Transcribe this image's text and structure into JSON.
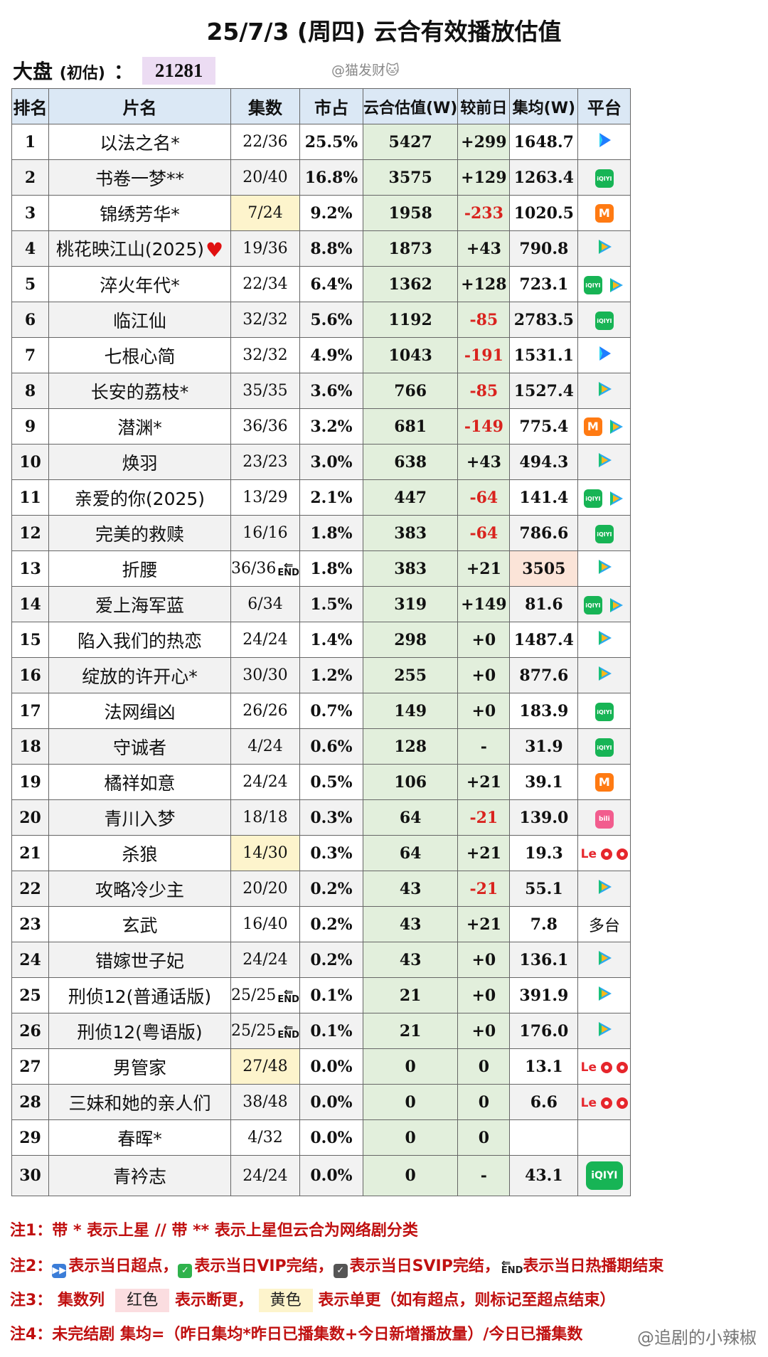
{
  "title": "25/7/3 (周四) 云合有效播放估值",
  "total": {
    "label": "大盘",
    "sublabel": "(初估)",
    "colon": "：",
    "value": "21281"
  },
  "watermark": "@猫发财🐱",
  "headers": [
    "排名",
    "片名",
    "集数",
    "市占",
    "云合估值(W)",
    "较前日",
    "集均(W)",
    "平台"
  ],
  "rows": [
    {
      "rank": "1",
      "name": "以法之名*",
      "episodes": "22/36",
      "share": "25.5%",
      "estimate": "5427",
      "change": "+299",
      "avg": "1648.7",
      "platforms": [
        "youku"
      ]
    },
    {
      "rank": "2",
      "name": "书卷一梦**",
      "episodes": "20/40",
      "share": "16.8%",
      "estimate": "3575",
      "change": "+129",
      "avg": "1263.4",
      "platforms": [
        "iqiyi"
      ]
    },
    {
      "rank": "3",
      "name": "锦绣芳华*",
      "episodes": "7/24",
      "ep_highlight": "yellow",
      "share": "9.2%",
      "estimate": "1958",
      "change": "-233",
      "avg": "1020.5",
      "platforms": [
        "mango"
      ]
    },
    {
      "rank": "4",
      "name": "桃花映江山(2025)",
      "heart": true,
      "episodes": "19/36",
      "share": "8.8%",
      "estimate": "1873",
      "change": "+43",
      "avg": "790.8",
      "platforms": [
        "tencent"
      ]
    },
    {
      "rank": "5",
      "name": "淬火年代*",
      "episodes": "22/34",
      "share": "6.4%",
      "estimate": "1362",
      "change": "+128",
      "avg": "723.1",
      "platforms": [
        "iqiyi",
        "tencent"
      ]
    },
    {
      "rank": "6",
      "name": "临江仙",
      "episodes": "32/32",
      "share": "5.6%",
      "estimate": "1192",
      "change": "-85",
      "avg": "2783.5",
      "platforms": [
        "iqiyi"
      ]
    },
    {
      "rank": "7",
      "name": "七根心简",
      "episodes": "32/32",
      "share": "4.9%",
      "estimate": "1043",
      "change": "-191",
      "avg": "1531.1",
      "platforms": [
        "youku"
      ]
    },
    {
      "rank": "8",
      "name": "长安的荔枝*",
      "episodes": "35/35",
      "share": "3.6%",
      "estimate": "766",
      "change": "-85",
      "avg": "1527.4",
      "platforms": [
        "tencent"
      ]
    },
    {
      "rank": "9",
      "name": "潜渊*",
      "episodes": "36/36",
      "share": "3.2%",
      "estimate": "681",
      "change": "-149",
      "avg": "775.4",
      "platforms": [
        "mango",
        "tencent"
      ]
    },
    {
      "rank": "10",
      "name": "焕羽",
      "episodes": "23/23",
      "share": "3.0%",
      "estimate": "638",
      "change": "+43",
      "avg": "494.3",
      "platforms": [
        "tencent"
      ]
    },
    {
      "rank": "11",
      "name": "亲爱的你(2025)",
      "episodes": "13/29",
      "share": "2.1%",
      "estimate": "447",
      "change": "-64",
      "avg": "141.4",
      "platforms": [
        "iqiyi",
        "tencent"
      ]
    },
    {
      "rank": "12",
      "name": "完美的救赎",
      "episodes": "16/16",
      "share": "1.8%",
      "estimate": "383",
      "change": "-64",
      "avg": "786.6",
      "platforms": [
        "iqiyi"
      ]
    },
    {
      "rank": "13",
      "name": "折腰",
      "episodes": "36/36",
      "end": true,
      "share": "1.8%",
      "estimate": "383",
      "change": "+21",
      "avg": "3505",
      "avg_highlight": true,
      "platforms": [
        "tencent"
      ]
    },
    {
      "rank": "14",
      "name": "爱上海军蓝",
      "episodes": "6/34",
      "share": "1.5%",
      "estimate": "319",
      "change": "+149",
      "avg": "81.6",
      "platforms": [
        "iqiyi",
        "tencent"
      ]
    },
    {
      "rank": "15",
      "name": "陷入我们的热恋",
      "episodes": "24/24",
      "share": "1.4%",
      "estimate": "298",
      "change": "+0",
      "avg": "1487.4",
      "platforms": [
        "tencent"
      ]
    },
    {
      "rank": "16",
      "name": "绽放的许开心*",
      "episodes": "30/30",
      "share": "1.2%",
      "estimate": "255",
      "change": "+0",
      "avg": "877.6",
      "platforms": [
        "tencent"
      ]
    },
    {
      "rank": "17",
      "name": "法网缉凶",
      "episodes": "26/26",
      "share": "0.7%",
      "estimate": "149",
      "change": "+0",
      "avg": "183.9",
      "platforms": [
        "iqiyi"
      ]
    },
    {
      "rank": "18",
      "name": "守诚者",
      "episodes": "4/24",
      "share": "0.6%",
      "estimate": "128",
      "change": "-",
      "avg": "31.9",
      "platforms": [
        "iqiyi"
      ]
    },
    {
      "rank": "19",
      "name": "橘祥如意",
      "episodes": "24/24",
      "share": "0.5%",
      "estimate": "106",
      "change": "+21",
      "avg": "39.1",
      "platforms": [
        "mango"
      ]
    },
    {
      "rank": "20",
      "name": "青川入梦",
      "episodes": "18/18",
      "share": "0.3%",
      "estimate": "64",
      "change": "-21",
      "avg": "139.0",
      "platforms": [
        "bili"
      ]
    },
    {
      "rank": "21",
      "name": "杀狼",
      "episodes": "14/30",
      "ep_highlight": "yellow",
      "share": "0.3%",
      "estimate": "64",
      "change": "+21",
      "avg": "19.3",
      "platforms": [
        "le"
      ]
    },
    {
      "rank": "22",
      "name": "攻略冷少主",
      "episodes": "20/20",
      "share": "0.2%",
      "estimate": "43",
      "change": "-21",
      "avg": "55.1",
      "platforms": [
        "tencent"
      ]
    },
    {
      "rank": "23",
      "name": "玄武",
      "episodes": "16/40",
      "share": "0.2%",
      "estimate": "43",
      "change": "+21",
      "avg": "7.8",
      "platforms": [
        "multi"
      ]
    },
    {
      "rank": "24",
      "name": "错嫁世子妃",
      "episodes": "24/24",
      "share": "0.2%",
      "estimate": "43",
      "change": "+0",
      "avg": "136.1",
      "platforms": [
        "tencent"
      ]
    },
    {
      "rank": "25",
      "name": "刑侦12(普通话版)",
      "episodes": "25/25",
      "end": true,
      "share": "0.1%",
      "estimate": "21",
      "change": "+0",
      "avg": "391.9",
      "platforms": [
        "tencent"
      ]
    },
    {
      "rank": "26",
      "name": "刑侦12(粤语版)",
      "episodes": "25/25",
      "end": true,
      "share": "0.1%",
      "estimate": "21",
      "change": "+0",
      "avg": "176.0",
      "platforms": [
        "tencent"
      ]
    },
    {
      "rank": "27",
      "name": "男管家",
      "episodes": "27/48",
      "ep_highlight": "yellow",
      "share": "0.0%",
      "estimate": "0",
      "change": "0",
      "avg": "13.1",
      "platforms": [
        "le"
      ]
    },
    {
      "rank": "28",
      "name": "三妹和她的亲人们",
      "episodes": "38/48",
      "share": "0.0%",
      "estimate": "0",
      "change": "0",
      "avg": "6.6",
      "platforms": [
        "le"
      ]
    },
    {
      "rank": "29",
      "name": "春晖*",
      "episodes": "4/32",
      "share": "0.0%",
      "estimate": "0",
      "change": "0",
      "avg": "",
      "platforms": []
    },
    {
      "rank": "30",
      "name": "青衿志",
      "episodes": "24/24",
      "share": "0.0%",
      "estimate": "0",
      "change": "-",
      "avg": "43.1",
      "platforms": [
        "iqiyi-big"
      ]
    }
  ],
  "multi_platform_label": "多台",
  "end_tag": "END",
  "iqiyi_label": "iQIYI",
  "le_label": "Le",
  "notes": {
    "n1": "注1：带 * 表示上星 // 带 ** 表示上星但云合为网络剧分类",
    "n2_prefix": "注2：",
    "n2_a": "表示当日超点，",
    "n2_b": "表示当日VIP完结，",
    "n2_c": "表示当日SVIP完结，",
    "n2_d": "表示当日热播期结束",
    "n3_prefix": "注3：  集数列",
    "n3_red": "红色",
    "n3_mid": "表示断更，",
    "n3_yellow": "黄色",
    "n3_end": "表示单更（如有超点，则标记至超点结束）",
    "n4": "注4：未完结剧 集均=（昨日集均*昨日已播集数+今日新增播放量）/今日已播集数"
  },
  "watermark2": "@追剧的小辣椒",
  "colors": {
    "header_bg": "#dbe8f5",
    "estimate_bg": "#e2efdc",
    "negative": "#d9231e",
    "note_red": "#c01010"
  }
}
